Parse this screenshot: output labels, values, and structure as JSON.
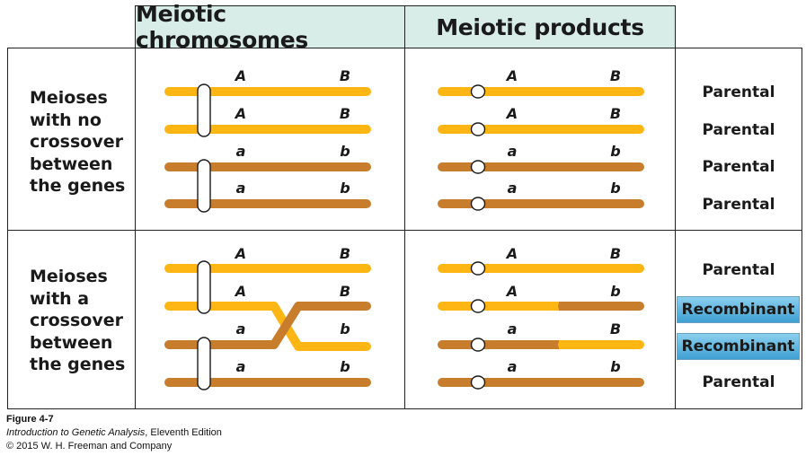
{
  "headers": {
    "chromosomes": "Meiotic chromosomes",
    "products": "Meiotic products"
  },
  "rows": [
    {
      "label_lines": [
        "Meioses",
        "with no",
        "crossover",
        "between",
        "the genes"
      ],
      "chromosomes": [
        [
          "A",
          "B"
        ],
        [
          "A",
          "B"
        ],
        [
          "a",
          "b"
        ],
        [
          "a",
          "b"
        ]
      ],
      "products": [
        [
          "A",
          "B"
        ],
        [
          "A",
          "B"
        ],
        [
          "a",
          "b"
        ],
        [
          "a",
          "b"
        ]
      ],
      "outcomes": [
        "Parental",
        "Parental",
        "Parental",
        "Parental"
      ]
    },
    {
      "label_lines": [
        "Meioses",
        "with a",
        "crossover",
        "between",
        "the genes"
      ],
      "chromosomes": [
        [
          "A",
          "B"
        ],
        [
          "A",
          "B"
        ],
        [
          "a",
          "b"
        ],
        [
          "a",
          "b"
        ]
      ],
      "products": [
        [
          "A",
          "B"
        ],
        [
          "A",
          "b"
        ],
        [
          "a",
          "B"
        ],
        [
          "a",
          "b"
        ]
      ],
      "outcomes": [
        "Parental",
        "Recombinant",
        "Recombinant",
        "Parental"
      ]
    }
  ],
  "caption": {
    "figure": "Figure 4-7",
    "title_italic": "Introduction to Genetic Analysis",
    "title_rest": ", Eleventh Edition",
    "copyright": "© 2015 W. H. Freeman and Company"
  },
  "colors": {
    "light_chromosome": "#fdb614",
    "dark_chromosome": "#c77d2c",
    "header_bg": "#d8ece8",
    "recombinant_bg": "#4aa8da"
  }
}
